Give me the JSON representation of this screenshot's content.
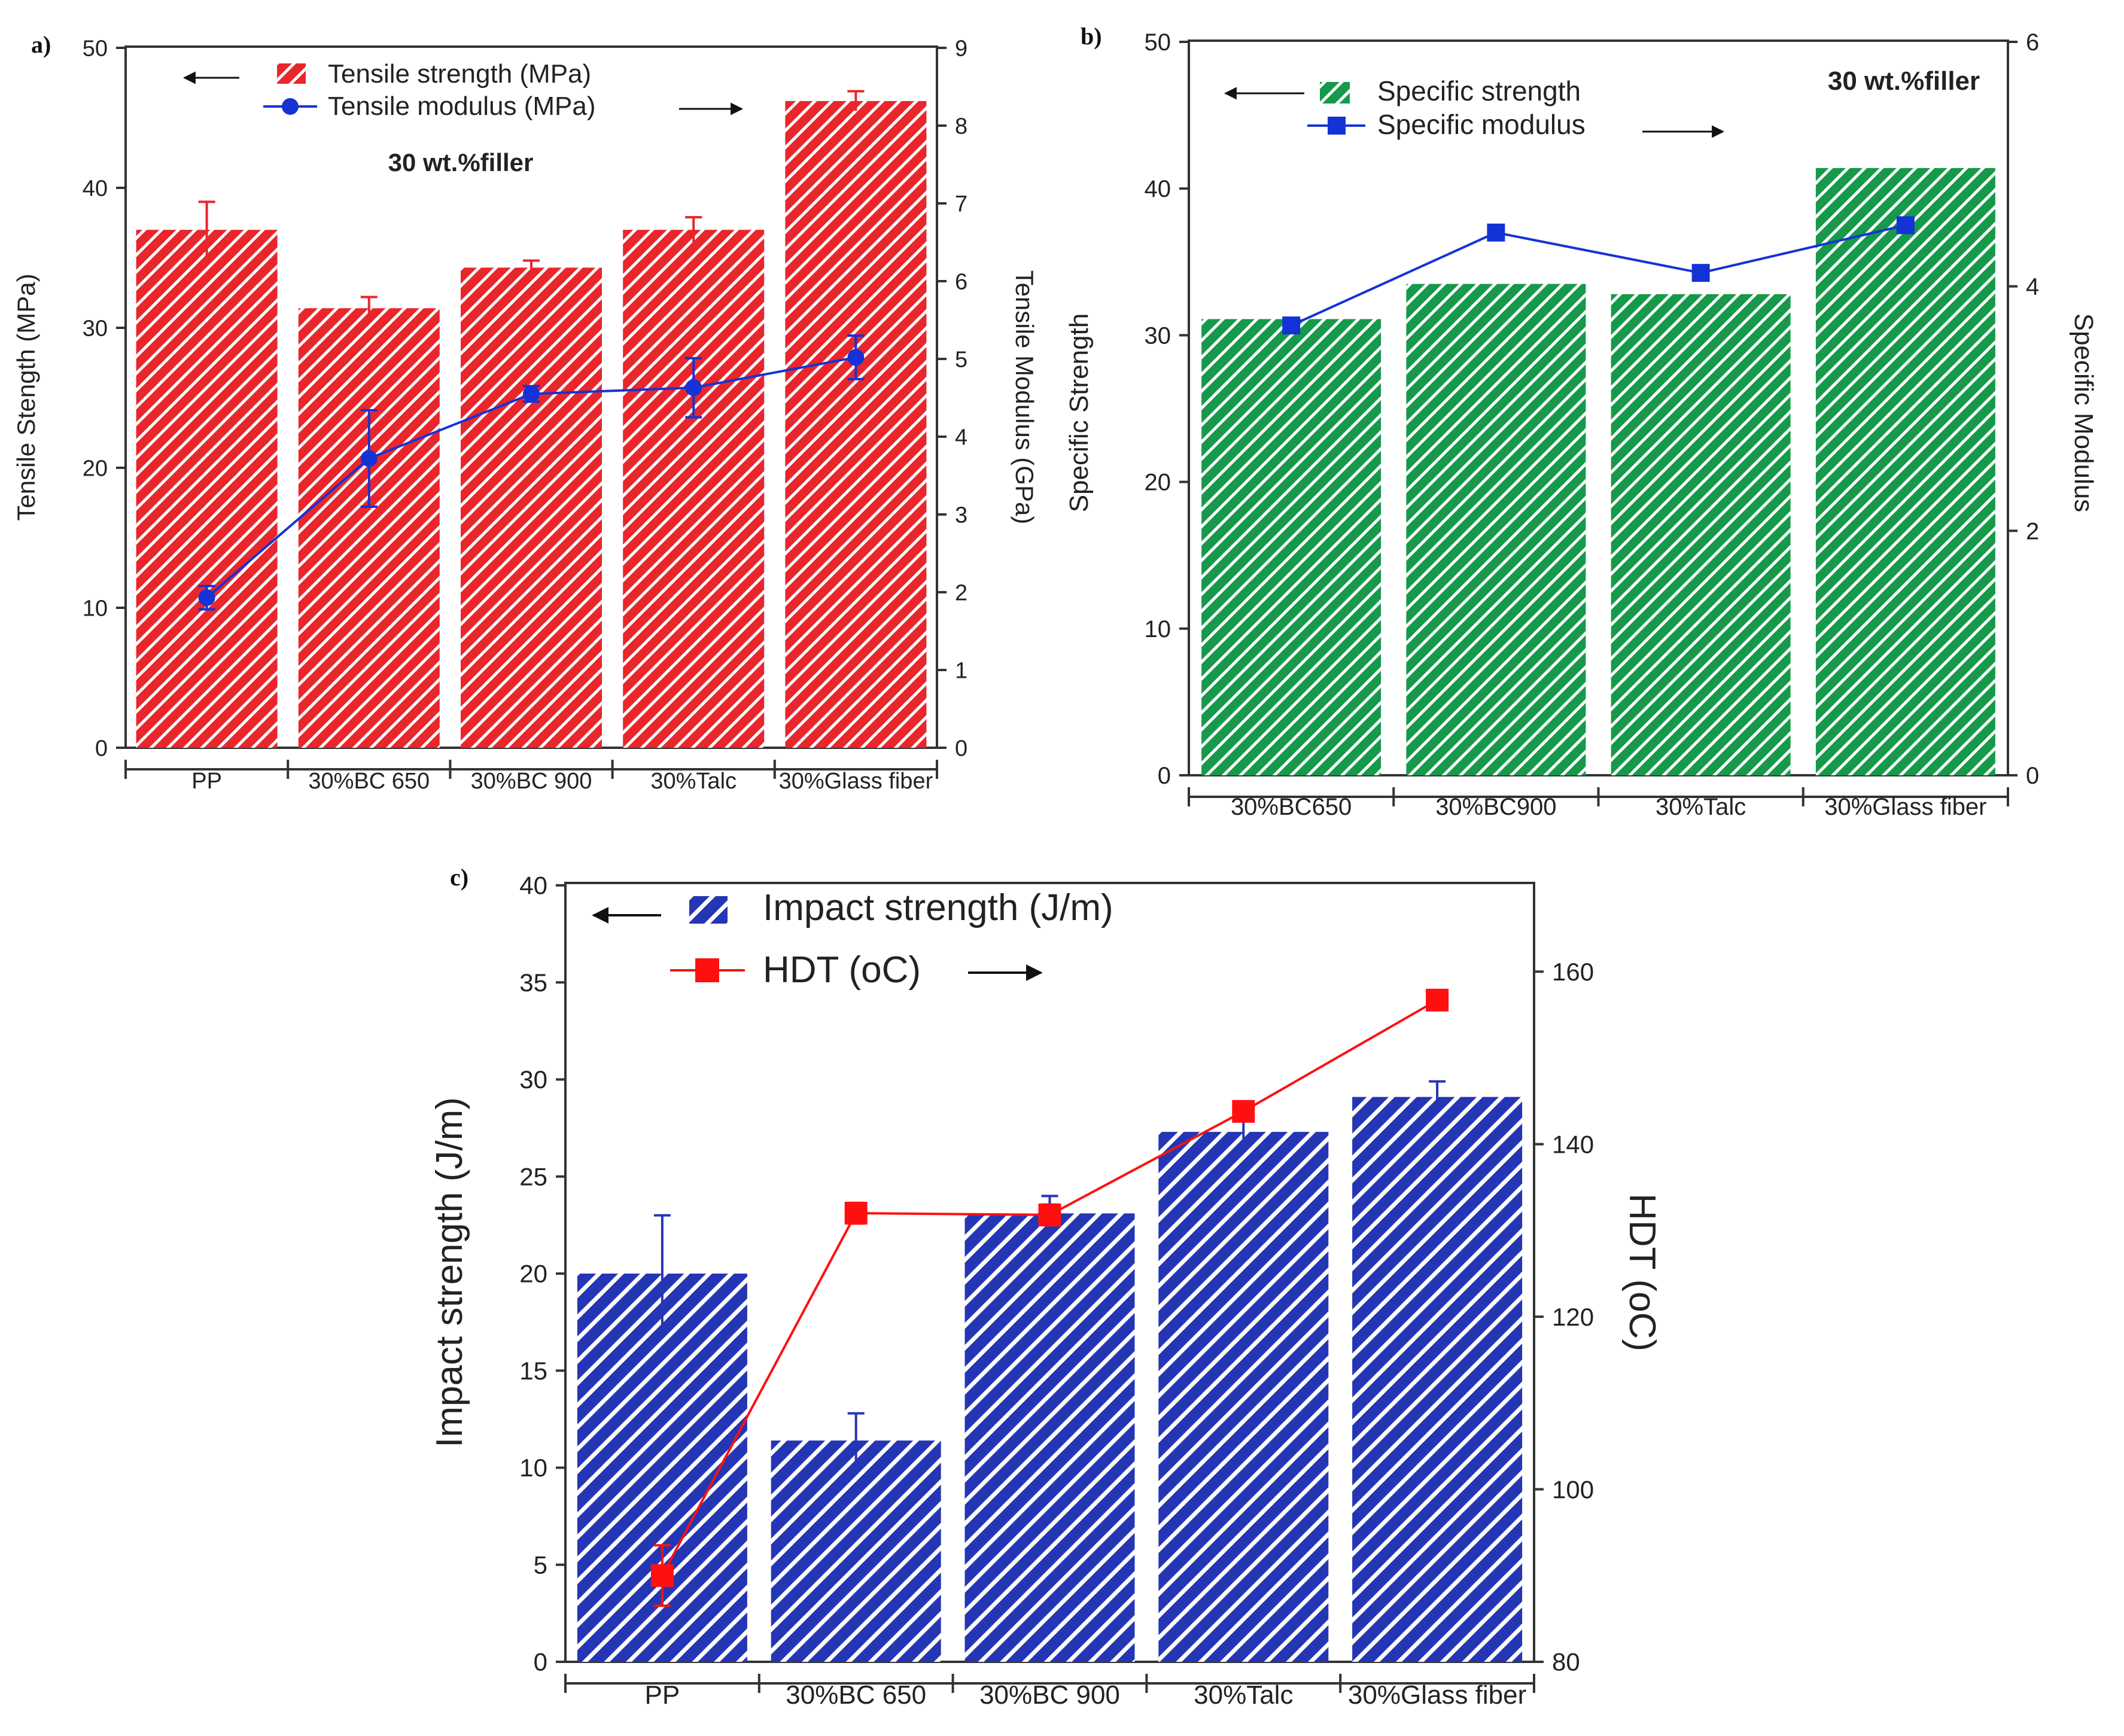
{
  "colors": {
    "red_bar": "#e8262b",
    "green_bar": "#16994a",
    "blue_bar": "#2436b4",
    "blue_line": "#1433d6",
    "red_line": "#ff1010",
    "axis": "#333333",
    "text": "#222222"
  },
  "chart_data": [
    {
      "panel_label": "a)",
      "type": "bar",
      "annotation": "30 wt.%filler",
      "categories": [
        "PP",
        "30%BC 650",
        "30%BC 900",
        "30%Talc",
        "30%Glass fiber"
      ],
      "left_axis": {
        "label": "Tensile Stength (MPa)",
        "range": [
          0,
          50
        ],
        "ticks": [
          "0",
          "10",
          "20",
          "30",
          "40",
          "50"
        ]
      },
      "right_axis": {
        "label": "Tensile Modulus (GPa)",
        "range": [
          0,
          9
        ],
        "ticks": [
          "0",
          "1",
          "2",
          "3",
          "4",
          "5",
          "6",
          "7",
          "8",
          "9"
        ]
      },
      "series": [
        {
          "name": "Tensile strength (MPa)",
          "kind": "bar",
          "axis": "left",
          "values": [
            37.0,
            31.4,
            34.3,
            37.0,
            46.2
          ],
          "errors": [
            2.0,
            0.8,
            0.5,
            0.9,
            0.7
          ]
        },
        {
          "name": "Tensile modulus (MPa)",
          "kind": "line",
          "marker": "circle",
          "axis": "right",
          "values": [
            1.93,
            3.72,
            4.55,
            4.63,
            5.02
          ],
          "errors": [
            0.15,
            0.62,
            0.1,
            0.38,
            0.28
          ]
        }
      ],
      "legend": {
        "position": "top-left"
      }
    },
    {
      "panel_label": "b)",
      "type": "bar",
      "annotation": "30 wt.%filler",
      "categories": [
        "30%BC650",
        "30%BC900",
        "30%Talc",
        "30%Glass fiber"
      ],
      "left_axis": {
        "label": "Specific Strength",
        "range": [
          0,
          50
        ],
        "ticks": [
          "0",
          "10",
          "20",
          "30",
          "40",
          "50"
        ]
      },
      "right_axis": {
        "label": "Specific Modulus",
        "range": [
          0,
          6
        ],
        "ticks": [
          "0",
          "2",
          "4",
          "6"
        ]
      },
      "series": [
        {
          "name": "Specific strength",
          "kind": "bar",
          "axis": "left",
          "values": [
            31.1,
            33.5,
            32.8,
            41.4
          ]
        },
        {
          "name": "Specific modulus",
          "kind": "line",
          "marker": "square",
          "axis": "right",
          "values": [
            3.68,
            4.44,
            4.11,
            4.5
          ]
        }
      ],
      "legend": {
        "position": "top-left"
      }
    },
    {
      "panel_label": "c)",
      "type": "bar",
      "categories": [
        "PP",
        "30%BC 650",
        "30%BC 900",
        "30%Talc",
        "30%Glass fiber"
      ],
      "left_axis": {
        "label": "Impact strength (J/m)",
        "range": [
          0,
          40
        ],
        "ticks": [
          "0",
          "5",
          "10",
          "15",
          "20",
          "25",
          "30",
          "35",
          "40"
        ]
      },
      "right_axis": {
        "label": "HDT (oC)",
        "range": [
          80,
          170
        ],
        "ticks": [
          "80",
          "100",
          "120",
          "140",
          "160"
        ]
      },
      "series": [
        {
          "name": "Impact strength (J/m)",
          "kind": "bar",
          "axis": "left",
          "values": [
            20.0,
            11.4,
            23.1,
            27.3,
            29.1
          ],
          "errors": [
            3.0,
            1.4,
            0.9,
            1.0,
            0.8
          ]
        },
        {
          "name": "HDT (oC)",
          "kind": "line",
          "marker": "square",
          "axis": "right",
          "values": [
            90.0,
            132.0,
            131.8,
            143.8,
            156.7
          ],
          "errors": [
            3.5,
            1.2,
            1.2,
            0.8,
            0.5
          ]
        }
      ],
      "legend": {
        "position": "top-left"
      }
    }
  ]
}
